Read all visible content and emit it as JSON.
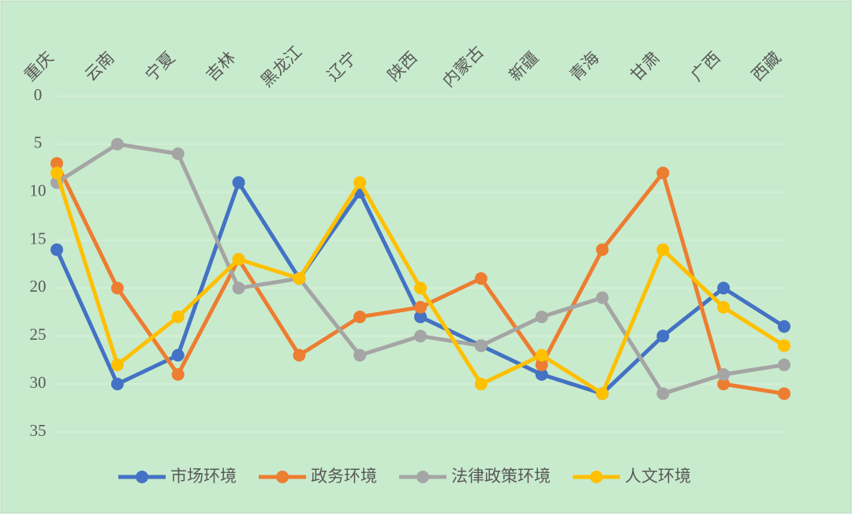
{
  "chart_data": {
    "type": "line",
    "categories": [
      "重庆",
      "云南",
      "宁夏",
      "吉林",
      "黑龙江",
      "辽宁",
      "陕西",
      "内蒙古",
      "新疆",
      "青海",
      "甘肃",
      "广西",
      "西藏"
    ],
    "series": [
      {
        "name": "市场环境",
        "color": "#4472c4",
        "values": [
          16,
          30,
          27,
          9,
          19,
          10,
          23,
          26,
          29,
          31,
          25,
          20,
          24
        ]
      },
      {
        "name": "政务环境",
        "color": "#ed7d31",
        "values": [
          7,
          20,
          29,
          17,
          27,
          23,
          22,
          19,
          28,
          16,
          8,
          30,
          31
        ]
      },
      {
        "name": "法律政策环境",
        "color": "#a5a5a5",
        "values": [
          9,
          5,
          6,
          20,
          19,
          27,
          25,
          26,
          23,
          21,
          31,
          29,
          28
        ]
      },
      {
        "name": "人文环境",
        "color": "#ffc000",
        "values": [
          8,
          28,
          23,
          17,
          19,
          9,
          20,
          30,
          27,
          31,
          16,
          22,
          26
        ]
      }
    ],
    "ylim": [
      35,
      0
    ],
    "yticks": [
      0,
      5,
      10,
      15,
      20,
      25,
      30,
      35
    ],
    "grid": true,
    "legend": "bottom"
  }
}
